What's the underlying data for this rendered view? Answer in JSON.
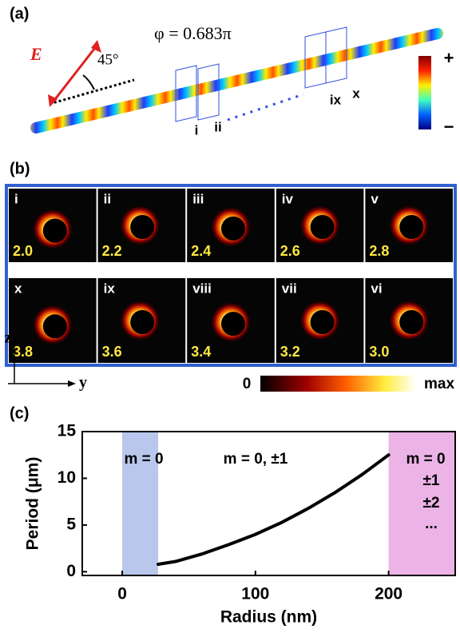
{
  "panel_a": {
    "label": "(a)",
    "phase": "φ = 0.683π",
    "field": "E",
    "angle": "45°",
    "planes": [
      "i",
      "ii",
      "ix",
      "x"
    ],
    "colorbar": {
      "max": "+",
      "min": "−"
    }
  },
  "panel_b": {
    "label": "(b)",
    "rows": [
      [
        {
          "name": "i",
          "value": "2.0"
        },
        {
          "name": "ii",
          "value": "2.2"
        },
        {
          "name": "iii",
          "value": "2.4"
        },
        {
          "name": "iv",
          "value": "2.6"
        },
        {
          "name": "v",
          "value": "2.8"
        }
      ],
      [
        {
          "name": "x",
          "value": "3.8"
        },
        {
          "name": "ix",
          "value": "3.6"
        },
        {
          "name": "viii",
          "value": "3.4"
        },
        {
          "name": "vii",
          "value": "3.2"
        },
        {
          "name": "vi",
          "value": "3.0"
        }
      ]
    ],
    "axes": {
      "vertical": "z",
      "horizontal": "y"
    },
    "colorbar": {
      "min": "0",
      "max": "max"
    }
  },
  "chart_data": {
    "type": "line",
    "label": "(c)",
    "xlabel": "Radius (nm)",
    "ylabel": "Period (μm)",
    "x": [
      27,
      40,
      60,
      80,
      100,
      120,
      140,
      160,
      180,
      200
    ],
    "values": [
      0.8,
      1.1,
      1.9,
      2.9,
      4.0,
      5.3,
      6.8,
      8.5,
      10.4,
      12.5
    ],
    "color": "#000000",
    "xlim": [
      -30,
      250
    ],
    "ylim": [
      -0.4,
      15
    ],
    "xticks": [
      0,
      100,
      200
    ],
    "yticks": [
      0,
      5,
      10,
      15
    ],
    "regions": [
      {
        "span": [
          0,
          27
        ],
        "color": "#aebde9"
      },
      {
        "span": [
          200,
          250
        ],
        "color": "#e9a6e2"
      }
    ],
    "annotations": [
      "m = 0",
      "m = 0, ±1",
      "m = 0",
      "±1",
      "±2",
      "..."
    ]
  }
}
